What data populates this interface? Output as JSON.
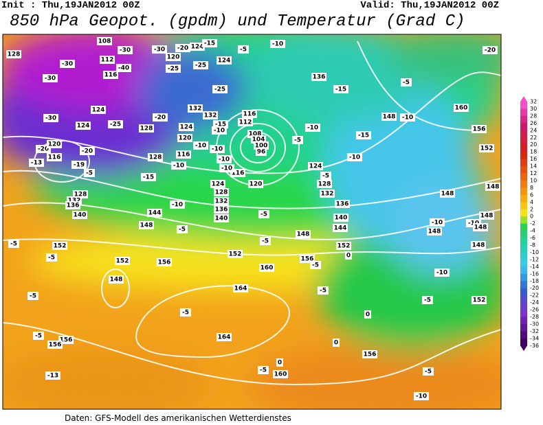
{
  "header": {
    "init": "Init : Thu,19JAN2012 00Z",
    "valid": "Valid: Thu,19JAN2012 00Z",
    "title": "850 hPa Geopot. (gpdm) und Temperatur (Grad C)"
  },
  "colorbar": {
    "labels": [
      32,
      30,
      28,
      26,
      24,
      22,
      20,
      18,
      16,
      14,
      12,
      10,
      8,
      6,
      4,
      2,
      0,
      -2,
      -4,
      -6,
      -8,
      -10,
      -12,
      -14,
      -16,
      -18,
      -20,
      -22,
      -24,
      -26,
      -28,
      -30,
      -32,
      -34,
      -36
    ]
  },
  "contour_labels": [
    "128",
    "108",
    "-30",
    "-30",
    "-20",
    "124",
    "-15",
    "-5",
    "-10",
    "-20",
    "-30",
    "112",
    "-40",
    "120",
    "-25",
    "-25",
    "124",
    "-30",
    "116",
    "136",
    "-5",
    "-15",
    "-25",
    "132",
    "124",
    "-30",
    "132",
    "116",
    "112",
    "148",
    "-10",
    "160",
    "124",
    "-25",
    "128",
    "124",
    "108",
    "-10",
    "156",
    "-20",
    "-15",
    "-10",
    "120",
    "-15",
    "152",
    "-20",
    "120",
    "-20",
    "116",
    "-19",
    "-13",
    "-5",
    "128",
    "116",
    "-10",
    "-10",
    "104",
    "100",
    "96",
    "-10",
    "-10",
    "-5",
    "124",
    "-10",
    "-5",
    "120",
    "124",
    "128",
    "-15",
    "116",
    "-10",
    "128",
    "132",
    "148",
    "148",
    "128",
    "132",
    "-10",
    "132",
    "136",
    "136",
    "140",
    "-5",
    "140",
    "136",
    "140",
    "148",
    "144",
    "-5",
    "144",
    "-10",
    "-10",
    "148",
    "148",
    "148",
    "148",
    "-5",
    "152",
    "152",
    "-5",
    "152",
    "152",
    "156",
    "-5",
    "156",
    "0",
    "148",
    "160",
    "-5",
    "148",
    "-10",
    "-5",
    "164",
    "-5",
    "-5",
    "152",
    "-5",
    "0",
    "164",
    "-5",
    "156",
    "156",
    "0",
    "156",
    "0",
    "-5",
    "160",
    "-5",
    "-13",
    "-10"
  ],
  "footer": "Daten: GFS-Modell des amerikanischen Wetterdienstes"
}
